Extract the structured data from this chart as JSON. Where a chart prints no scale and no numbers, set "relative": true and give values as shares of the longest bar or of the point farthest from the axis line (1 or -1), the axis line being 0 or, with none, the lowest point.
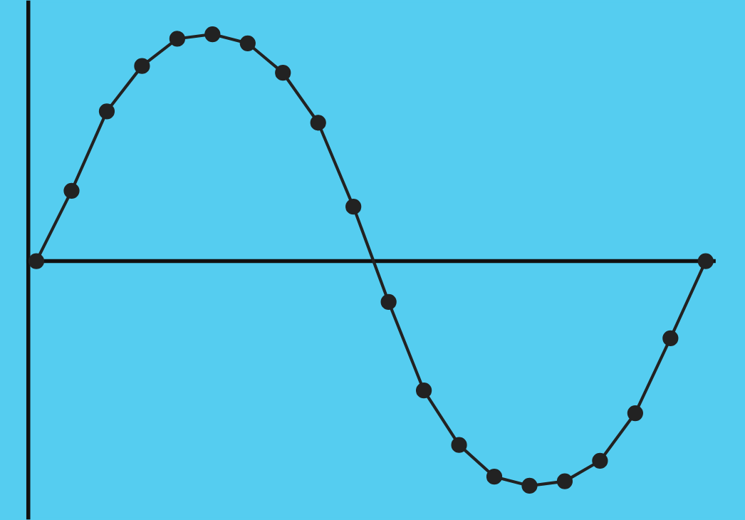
{
  "chart_data": {
    "type": "line",
    "relative": true,
    "marker": "circle",
    "line_style": "solid",
    "categories": [
      null,
      null,
      null,
      null,
      null,
      null,
      null,
      null,
      null,
      null,
      null,
      null,
      null,
      null,
      null,
      null,
      null,
      null,
      null,
      null
    ],
    "series": [
      {
        "color": "#222222",
        "values": [
          0,
          0.31,
          0.66,
          0.86,
          0.98,
          1.0,
          0.96,
          0.83,
          0.61,
          0.24,
          -0.18,
          -0.57,
          -0.81,
          -0.95,
          -0.99,
          -0.97,
          -0.88,
          -0.67,
          -0.34,
          0
        ]
      }
    ]
  }
}
